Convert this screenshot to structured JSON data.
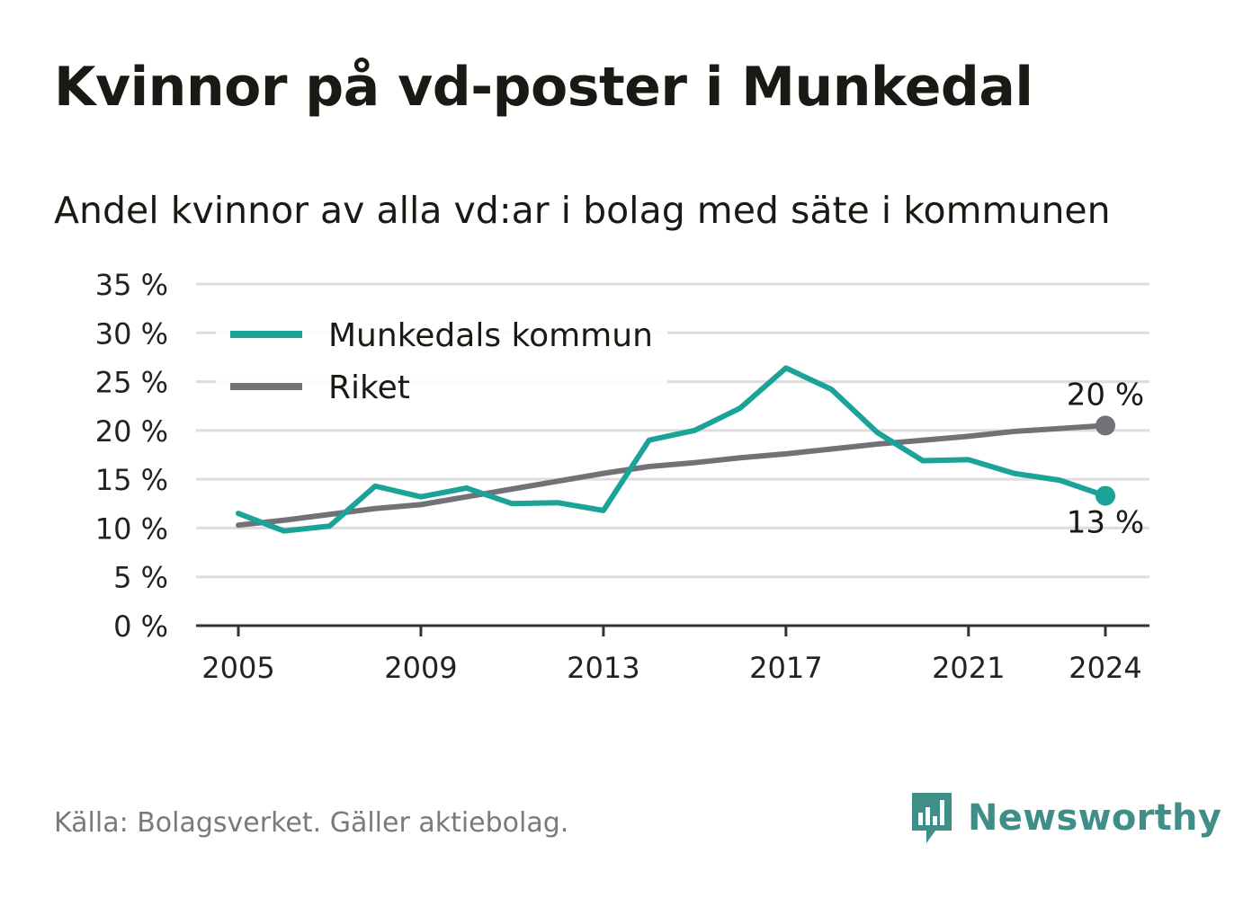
{
  "title": "Kvinnor på vd-poster i Munkedal",
  "subtitle": "Andel kvinnor av alla vd:ar i bolag med säte i kommunen",
  "source": "Källa: Bolagsverket. Gäller aktiebolag.",
  "brand": {
    "name": "Newsworthy",
    "icon": "newsworthy-bar-chart-icon",
    "color": "#3f8f88"
  },
  "chart_data": {
    "type": "line",
    "x": [
      2005,
      2006,
      2007,
      2008,
      2009,
      2010,
      2011,
      2012,
      2013,
      2014,
      2015,
      2016,
      2017,
      2018,
      2019,
      2020,
      2021,
      2022,
      2023,
      2024
    ],
    "x_ticks": [
      2005,
      2009,
      2013,
      2017,
      2021,
      2024
    ],
    "y_ticks": [
      0,
      5,
      10,
      15,
      20,
      25,
      30,
      35
    ],
    "y_tick_labels": [
      "0 %",
      "5 %",
      "10 %",
      "15 %",
      "20 %",
      "25 %",
      "30 %",
      "35 %"
    ],
    "ylim": [
      0,
      35
    ],
    "xlim": [
      2005,
      2024
    ],
    "grid": true,
    "legend_position": "top-left",
    "series": [
      {
        "name": "Munkedals kommun",
        "color": "#1aa396",
        "values": [
          11.5,
          9.7,
          10.2,
          14.3,
          13.2,
          14.1,
          12.5,
          12.6,
          11.8,
          19.0,
          20.0,
          22.3,
          26.4,
          24.2,
          19.8,
          16.9,
          17.0,
          15.6,
          14.9,
          13.3
        ],
        "end_label": "13 %"
      },
      {
        "name": "Riket",
        "color": "#727178",
        "values": [
          10.3,
          10.8,
          11.4,
          12.0,
          12.4,
          13.2,
          14.0,
          14.8,
          15.6,
          16.3,
          16.7,
          17.2,
          17.6,
          18.1,
          18.6,
          19.0,
          19.4,
          19.9,
          20.2,
          20.5
        ],
        "end_label": "20 %"
      }
    ]
  }
}
